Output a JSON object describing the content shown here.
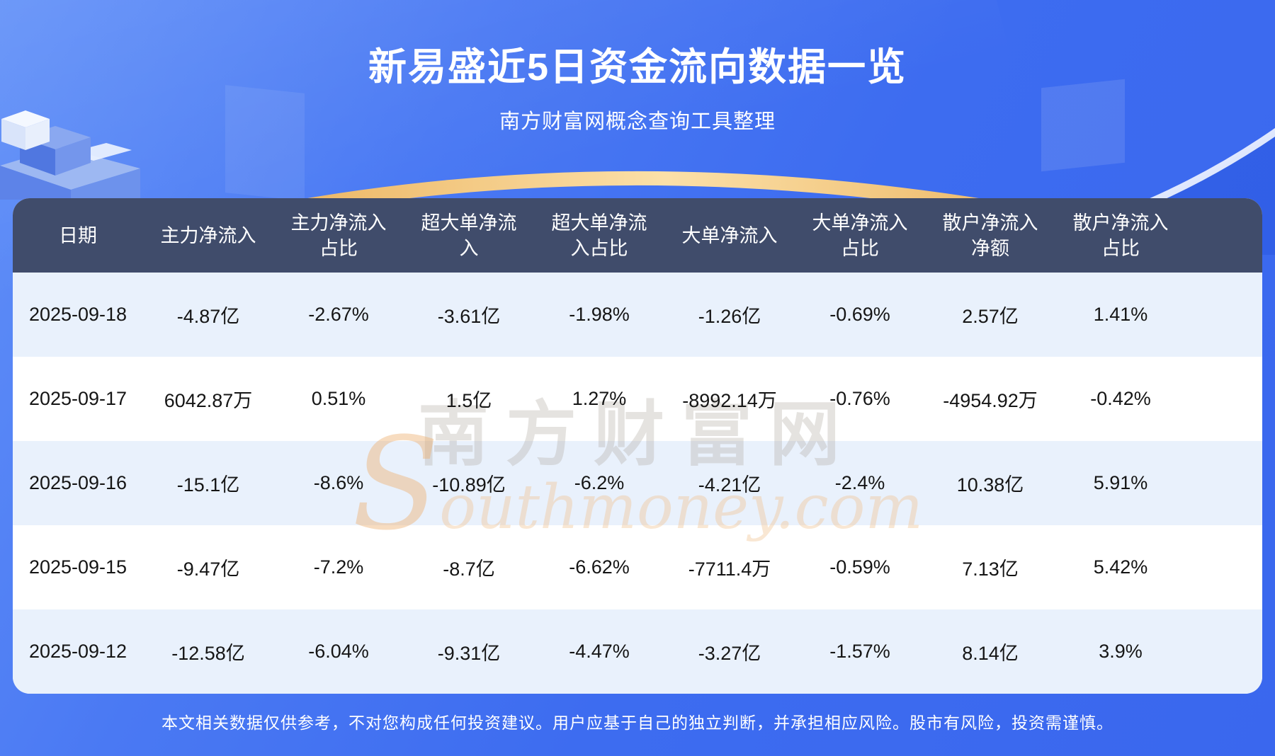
{
  "header": {
    "title": "新易盛近5日资金流向数据一览",
    "subtitle": "南方财富网概念查询工具整理"
  },
  "watermark": {
    "cn": "南方财富网",
    "en": "Southmoney.com"
  },
  "footer": {
    "disclaimer": "本文相关数据仅供参考，不对您构成任何投资建议。用户应基于自己的独立判断，并承担相应风险。股市有风险，投资需谨慎。"
  },
  "colors": {
    "page_top": "#6190f8",
    "page_bottom": "#3a67ee",
    "table_header_bg": "#404c6b",
    "row_alt_bg": "#e9f1fc",
    "row_bg": "#ffffff",
    "gold_accent": "#f5c97e",
    "text_dark": "#151515",
    "text_light": "#ffffff"
  },
  "chart_data": {
    "type": "table",
    "title": "新易盛近5日资金流向数据一览",
    "source_note": "南方财富网概念查询工具整理",
    "columns": [
      "日期",
      "主力净流入",
      "主力净流入占比",
      "超大单净流入",
      "超大单净流入占比",
      "大单净流入",
      "大单净流入占比",
      "散户净流入净额",
      "散户净流入占比"
    ],
    "rows": [
      [
        "2025-09-18",
        "-4.87亿",
        "-2.67%",
        "-3.61亿",
        "-1.98%",
        "-1.26亿",
        "-0.69%",
        "2.57亿",
        "1.41%"
      ],
      [
        "2025-09-17",
        "6042.87万",
        "0.51%",
        "1.5亿",
        "1.27%",
        "-8992.14万",
        "-0.76%",
        "-4954.92万",
        "-0.42%"
      ],
      [
        "2025-09-16",
        "-15.1亿",
        "-8.6%",
        "-10.89亿",
        "-6.2%",
        "-4.21亿",
        "-2.4%",
        "10.38亿",
        "5.91%"
      ],
      [
        "2025-09-15",
        "-9.47亿",
        "-7.2%",
        "-8.7亿",
        "-6.62%",
        "-7711.4万",
        "-0.59%",
        "7.13亿",
        "5.42%"
      ],
      [
        "2025-09-12",
        "-12.58亿",
        "-6.04%",
        "-9.31亿",
        "-4.47%",
        "-3.27亿",
        "-1.57%",
        "8.14亿",
        "3.9%"
      ]
    ]
  }
}
